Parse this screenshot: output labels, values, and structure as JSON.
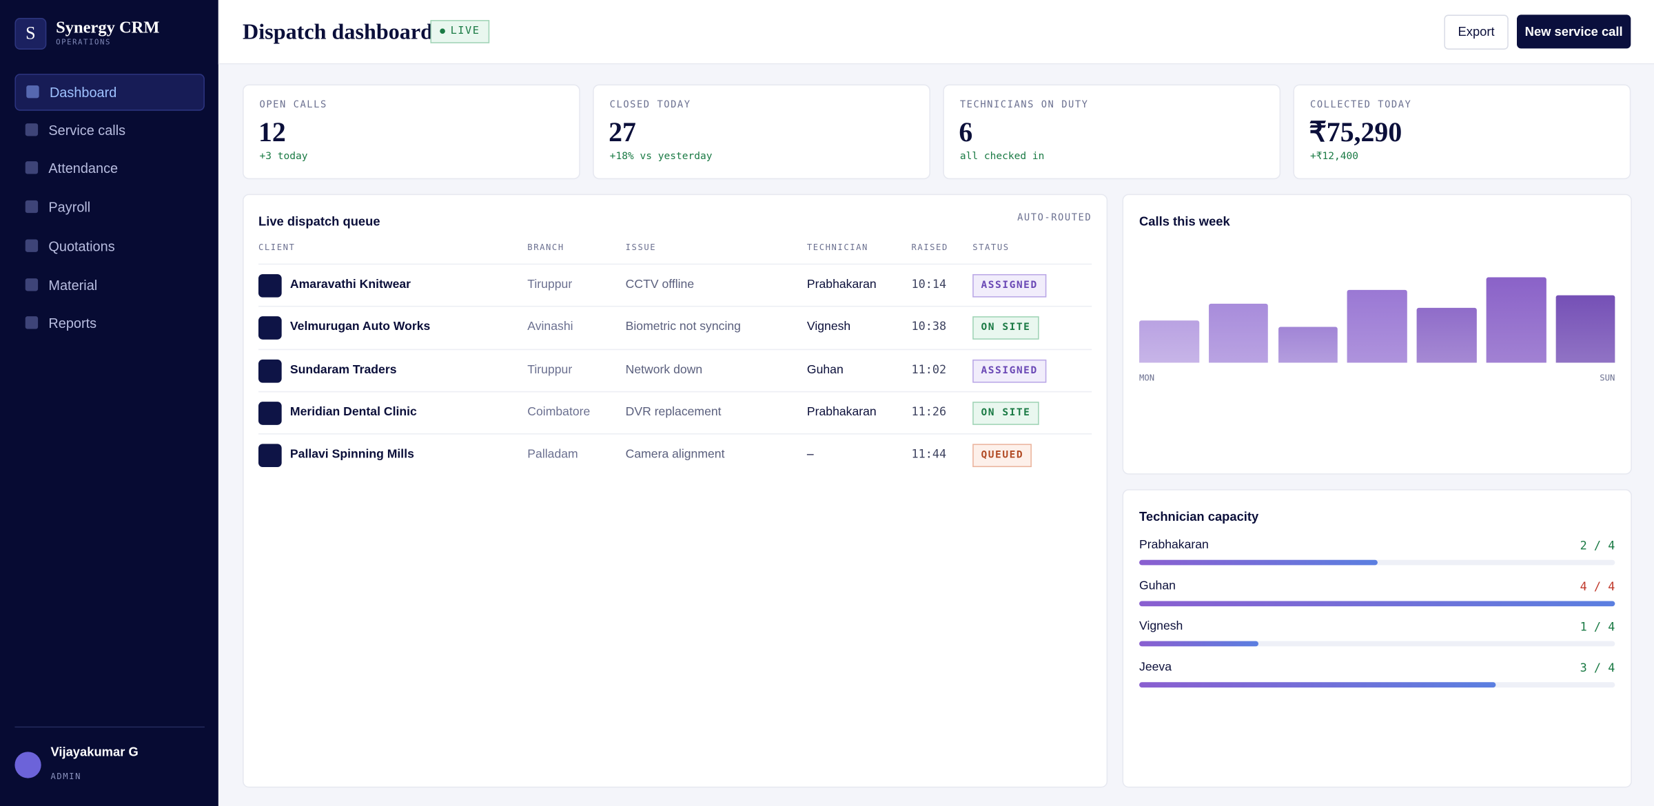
{
  "brand": {
    "initial": "S",
    "name": "Synergy CRM",
    "subtitle": "OPERATIONS"
  },
  "nav": [
    "Dashboard",
    "Service calls",
    "Attendance",
    "Payroll",
    "Quotations",
    "Material",
    "Reports"
  ],
  "user": {
    "name": "Vijayakumar G",
    "role": "ADMIN"
  },
  "header": {
    "title": "Dispatch dashboard",
    "badge": "LIVE",
    "buttons": [
      "Export",
      "New service call"
    ]
  },
  "kpis": [
    {
      "label": "OPEN CALLS",
      "value": "12",
      "delta": "+3 today"
    },
    {
      "label": "CLOSED TODAY",
      "value": "27",
      "delta": "+18% vs yesterday"
    },
    {
      "label": "TECHNICIANS ON DUTY",
      "value": "6",
      "delta": "all checked in"
    },
    {
      "label": "COLLECTED TODAY",
      "value": "₹75,290",
      "delta": "+₹12,400"
    }
  ],
  "queue": {
    "title": "Live dispatch queue",
    "tag": "AUTO-ROUTED",
    "columns": [
      "CLIENT",
      "BRANCH",
      "ISSUE",
      "TECHNICIAN",
      "RAISED",
      "STATUS"
    ],
    "rows": [
      [
        "Amaravathi Knitwear",
        "Tiruppur",
        "CCTV offline",
        "Prabhakaran",
        "10:14",
        "ASSIGNED"
      ],
      [
        "Velmurugan Auto Works",
        "Avinashi",
        "Biometric not syncing",
        "Vignesh",
        "10:38",
        "ON SITE"
      ],
      [
        "Sundaram Traders",
        "Tiruppur",
        "Network down",
        "Guhan",
        "11:02",
        "ASSIGNED"
      ],
      [
        "Meridian Dental Clinic",
        "Coimbatore",
        "DVR replacement",
        "Prabhakaran",
        "11:26",
        "ON SITE"
      ],
      [
        "Pallavi Spinning Mills",
        "Palladam",
        "Camera alignment",
        "–",
        "11:44",
        "QUEUED"
      ]
    ]
  },
  "chart_data": {
    "type": "bar",
    "title": "Calls this week",
    "categories": [
      "MON",
      null,
      null,
      null,
      null,
      null,
      "SUN"
    ],
    "values": [
      40,
      56,
      34,
      69,
      52,
      81,
      64
    ],
    "colors": [
      "#b9a2e2",
      "#a88cdb",
      "#a185d6",
      "#9a78d4",
      "#8f6cc9",
      "#8a62c8",
      "#7550b6"
    ]
  },
  "capacity": {
    "title": "Technician capacity",
    "items": [
      {
        "name": "Prabhakaran",
        "label": "2 / 4",
        "assigned": 2,
        "capacity": 4
      },
      {
        "name": "Guhan",
        "label": "4 / 4",
        "assigned": 4,
        "capacity": 4
      },
      {
        "name": "Vignesh",
        "label": "1 / 4",
        "assigned": 1,
        "capacity": 4
      },
      {
        "name": "Jeeva",
        "label": "3 / 4",
        "assigned": 3,
        "capacity": 4
      }
    ]
  }
}
